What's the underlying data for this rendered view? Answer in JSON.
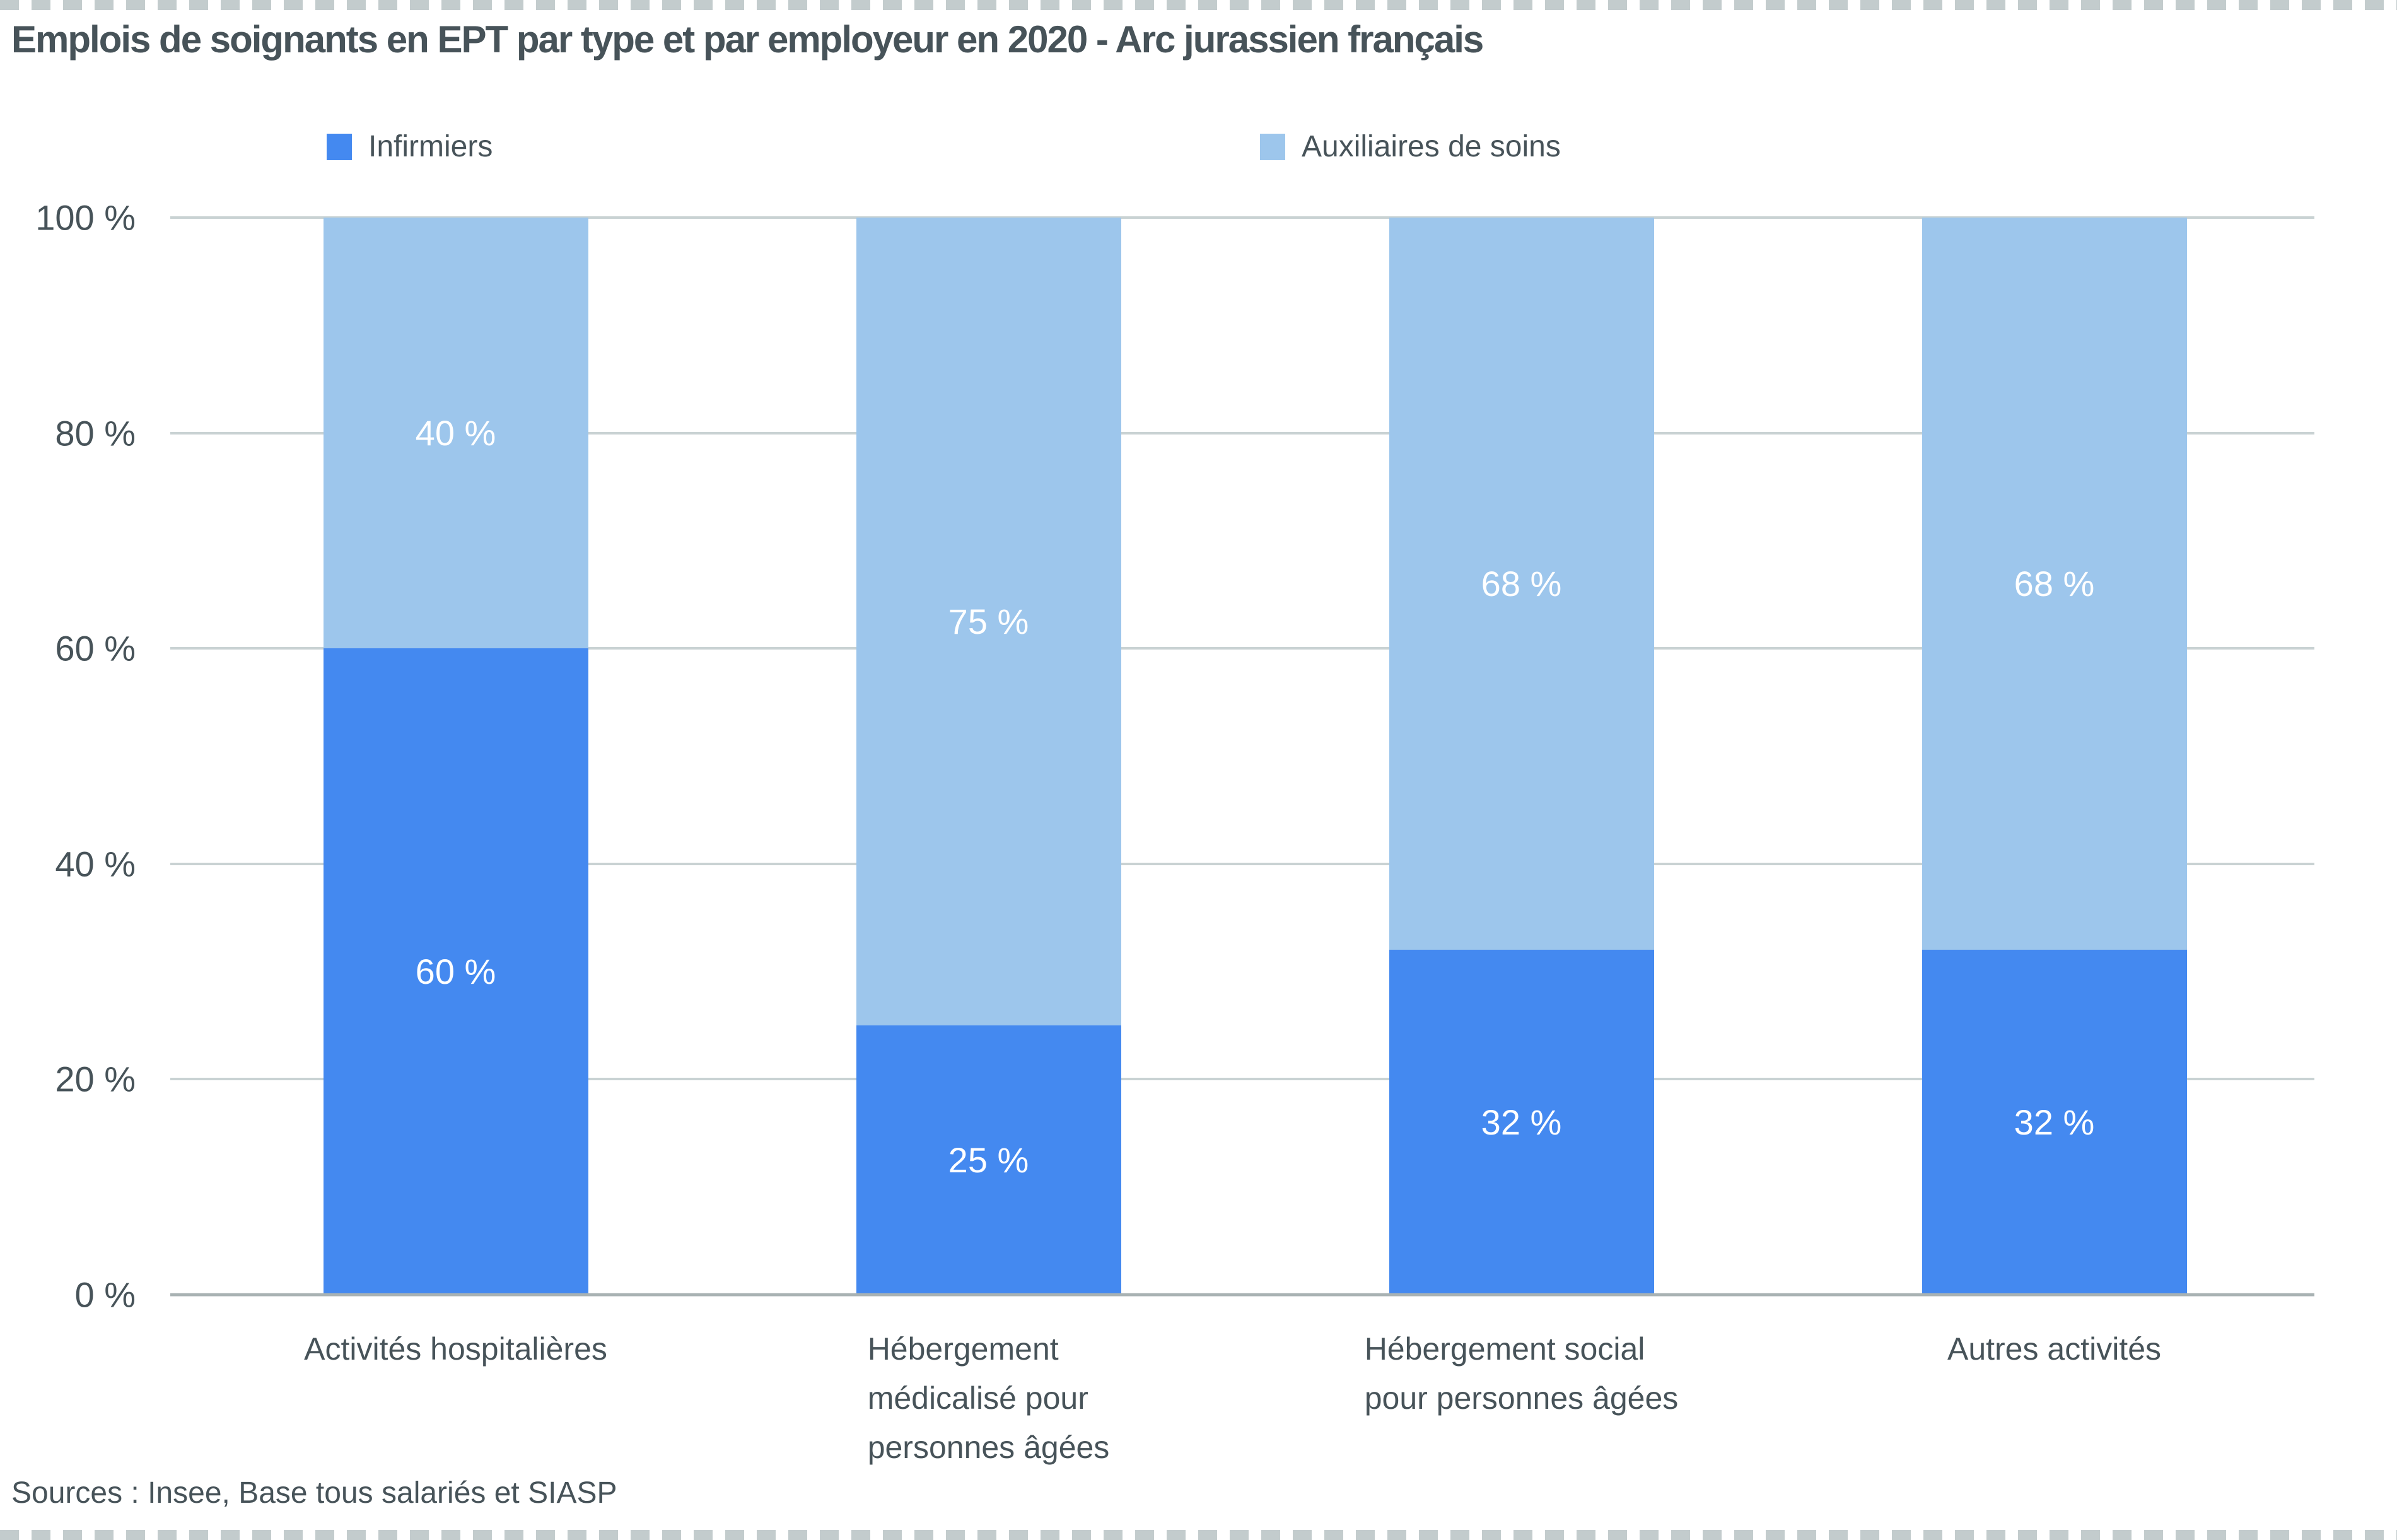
{
  "page": {
    "source": "Sources : Insee, Base tous salariés et SIASP"
  },
  "colors": {
    "text": "#475359",
    "gridline": "#c9d2d3",
    "axis_line": "#a9b2b3",
    "dashed_border": "#c3cccd",
    "data_label": "#ffffff"
  },
  "chart_data": {
    "type": "bar",
    "stacked": true,
    "unit": "%",
    "title": "Emplois de soignants en EPT par type et par employeur en 2020 - Arc jurassien français",
    "categories": [
      "Activités hospitalières",
      "Hébergement\nmédicalisé pour\npersonnes âgées",
      "Hébergement social\npour personnes âgées",
      "Autres activités"
    ],
    "series": [
      {
        "name": "Infirmiers",
        "color": "#4489f0",
        "values": [
          60,
          25,
          32,
          32
        ],
        "data_labels": [
          "60 %",
          "25 %",
          "32 %",
          "32 %"
        ]
      },
      {
        "name": "Auxiliaires de soins",
        "color": "#9dc6ec",
        "values": [
          40,
          75,
          68,
          68
        ],
        "data_labels": [
          "40 %",
          "75 %",
          "68 %",
          "68 %"
        ]
      }
    ],
    "y_axis": {
      "min": 0,
      "max": 100,
      "tick_step": 20,
      "tick_labels": [
        "0 %",
        "20 %",
        "40 %",
        "60 %",
        "80 %",
        "100 %"
      ]
    },
    "legend_position": "top",
    "grid": true
  }
}
